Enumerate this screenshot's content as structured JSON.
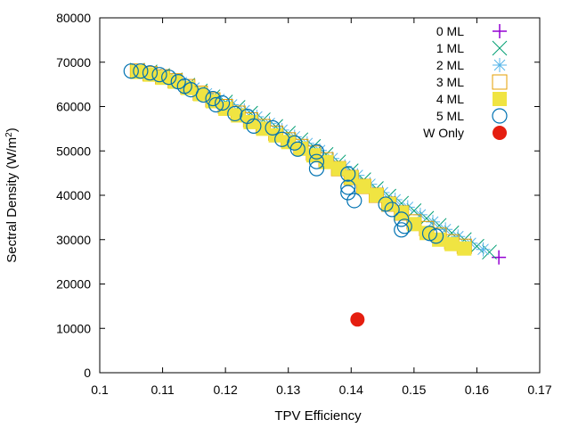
{
  "chart_data": {
    "type": "scatter",
    "title": "",
    "xlabel": "TPV Efficiency",
    "ylabel_prefix": "Sectral Density (W/m",
    "ylabel_sup": "2",
    "ylabel_suffix": ")",
    "xlim": [
      0.1,
      0.17
    ],
    "ylim": [
      0,
      80000
    ],
    "xticks": [
      0.1,
      0.11,
      0.12,
      0.13,
      0.14,
      0.15,
      0.16,
      0.17
    ],
    "xtick_labels": [
      "0.1",
      "0.11",
      "0.12",
      "0.13",
      "0.14",
      "0.15",
      "0.16",
      "0.17"
    ],
    "yticks": [
      0,
      10000,
      20000,
      30000,
      40000,
      50000,
      60000,
      70000,
      80000
    ],
    "ytick_labels": [
      "0",
      "10000",
      "20000",
      "30000",
      "40000",
      "50000",
      "60000",
      "70000",
      "80000"
    ],
    "grid": false,
    "legend_position": "top-right",
    "series": [
      {
        "name": "0 ML",
        "marker": "plus",
        "color": "#9400d3",
        "points": [
          [
            0.1635,
            26000
          ]
        ]
      },
      {
        "name": "1 ML",
        "marker": "x",
        "color": "#009e73",
        "points": [
          [
            0.106,
            68200
          ],
          [
            0.108,
            67800
          ],
          [
            0.11,
            67000
          ],
          [
            0.112,
            66000
          ],
          [
            0.114,
            64800
          ],
          [
            0.116,
            63500
          ],
          [
            0.118,
            62200
          ],
          [
            0.12,
            61000
          ],
          [
            0.122,
            59800
          ],
          [
            0.124,
            58500
          ],
          [
            0.126,
            57000
          ],
          [
            0.128,
            55500
          ],
          [
            0.13,
            54000
          ],
          [
            0.132,
            52500
          ],
          [
            0.134,
            51000
          ],
          [
            0.136,
            49200
          ],
          [
            0.138,
            47500
          ],
          [
            0.14,
            45500
          ],
          [
            0.142,
            43500
          ],
          [
            0.144,
            41500
          ],
          [
            0.146,
            39800
          ],
          [
            0.148,
            38200
          ],
          [
            0.15,
            36500
          ],
          [
            0.152,
            34800
          ],
          [
            0.154,
            33200
          ],
          [
            0.156,
            31500
          ],
          [
            0.158,
            30000
          ],
          [
            0.16,
            28500
          ],
          [
            0.162,
            27200
          ]
        ]
      },
      {
        "name": "2 ML",
        "marker": "star",
        "color": "#56b4e9",
        "points": [
          [
            0.107,
            68000
          ],
          [
            0.109,
            67400
          ],
          [
            0.111,
            66600
          ],
          [
            0.113,
            65400
          ],
          [
            0.115,
            64200
          ],
          [
            0.117,
            62900
          ],
          [
            0.119,
            61600
          ],
          [
            0.121,
            60400
          ],
          [
            0.123,
            59100
          ],
          [
            0.125,
            57700
          ],
          [
            0.127,
            56200
          ],
          [
            0.129,
            54700
          ],
          [
            0.131,
            53200
          ],
          [
            0.133,
            51700
          ],
          [
            0.135,
            50100
          ],
          [
            0.137,
            48300
          ],
          [
            0.139,
            46500
          ],
          [
            0.141,
            44500
          ],
          [
            0.143,
            42500
          ],
          [
            0.145,
            40600
          ],
          [
            0.147,
            39000
          ],
          [
            0.149,
            37300
          ],
          [
            0.151,
            35600
          ],
          [
            0.153,
            34000
          ],
          [
            0.155,
            32300
          ],
          [
            0.157,
            30700
          ],
          [
            0.159,
            29200
          ],
          [
            0.161,
            27800
          ]
        ]
      },
      {
        "name": "3 ML",
        "marker": "square-open",
        "color": "#e69f00",
        "points": [
          [
            0.106,
            68000
          ],
          [
            0.108,
            67400
          ],
          [
            0.11,
            66700
          ],
          [
            0.112,
            65800
          ],
          [
            0.114,
            64500
          ],
          [
            0.116,
            63000
          ],
          [
            0.118,
            61500
          ],
          [
            0.12,
            60000
          ],
          [
            0.122,
            58500
          ],
          [
            0.124,
            57000
          ],
          [
            0.126,
            55500
          ],
          [
            0.128,
            54000
          ],
          [
            0.13,
            52500
          ],
          [
            0.132,
            51000
          ],
          [
            0.134,
            49500
          ],
          [
            0.136,
            48000
          ],
          [
            0.138,
            46000
          ],
          [
            0.14,
            44000
          ],
          [
            0.142,
            42000
          ],
          [
            0.144,
            40000
          ],
          [
            0.146,
            38000
          ],
          [
            0.148,
            36000
          ],
          [
            0.15,
            34000
          ],
          [
            0.152,
            32500
          ],
          [
            0.154,
            31000
          ],
          [
            0.156,
            29500
          ],
          [
            0.158,
            28500
          ]
        ]
      },
      {
        "name": "4 ML",
        "marker": "square-filled",
        "color": "#f0e442",
        "points": [
          [
            0.106,
            67800
          ],
          [
            0.108,
            67200
          ],
          [
            0.11,
            66500
          ],
          [
            0.112,
            65600
          ],
          [
            0.114,
            64200
          ],
          [
            0.116,
            62800
          ],
          [
            0.118,
            61200
          ],
          [
            0.12,
            59500
          ],
          [
            0.122,
            58000
          ],
          [
            0.124,
            56500
          ],
          [
            0.126,
            55000
          ],
          [
            0.128,
            53500
          ],
          [
            0.13,
            52000
          ],
          [
            0.132,
            50500
          ],
          [
            0.134,
            49000
          ],
          [
            0.136,
            47500
          ],
          [
            0.138,
            46000
          ],
          [
            0.14,
            44000
          ],
          [
            0.142,
            42000
          ],
          [
            0.144,
            40000
          ],
          [
            0.146,
            38000
          ],
          [
            0.148,
            36000
          ],
          [
            0.15,
            33500
          ],
          [
            0.152,
            31500
          ],
          [
            0.154,
            30000
          ],
          [
            0.156,
            29000
          ],
          [
            0.158,
            28000
          ]
        ]
      },
      {
        "name": "5 ML",
        "marker": "circle-open",
        "color": "#0072b2",
        "points": [
          [
            0.105,
            68000
          ],
          [
            0.1065,
            68000
          ],
          [
            0.108,
            67600
          ],
          [
            0.1095,
            67200
          ],
          [
            0.111,
            66600
          ],
          [
            0.1125,
            65600
          ],
          [
            0.1135,
            64600
          ],
          [
            0.1145,
            63800
          ],
          [
            0.1165,
            62600
          ],
          [
            0.118,
            61800
          ],
          [
            0.1185,
            60400
          ],
          [
            0.1195,
            60800
          ],
          [
            0.1215,
            58400
          ],
          [
            0.1235,
            57800
          ],
          [
            0.1245,
            55600
          ],
          [
            0.1275,
            55200
          ],
          [
            0.129,
            52600
          ],
          [
            0.131,
            51800
          ],
          [
            0.1315,
            50400
          ],
          [
            0.1345,
            49800
          ],
          [
            0.1345,
            47600
          ],
          [
            0.1345,
            46000
          ],
          [
            0.1395,
            44800
          ],
          [
            0.1395,
            41800
          ],
          [
            0.1395,
            40600
          ],
          [
            0.1405,
            38800
          ],
          [
            0.1455,
            38000
          ],
          [
            0.1465,
            36800
          ],
          [
            0.148,
            34600
          ],
          [
            0.1485,
            33000
          ],
          [
            0.148,
            32200
          ],
          [
            0.1525,
            31400
          ],
          [
            0.1535,
            30800
          ]
        ]
      },
      {
        "name": "W Only",
        "marker": "circle-filled",
        "color": "#e51e10",
        "points": [
          [
            0.141,
            12000
          ]
        ]
      }
    ]
  }
}
